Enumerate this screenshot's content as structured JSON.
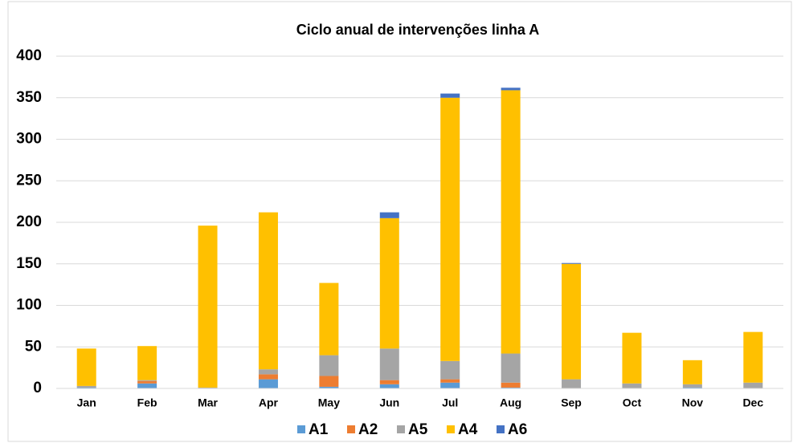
{
  "chart_data": {
    "type": "stacked_bar",
    "title": "Ciclo anual de intervenções linha A",
    "categories": [
      "Jan",
      "Feb",
      "Mar",
      "Apr",
      "May",
      "Jun",
      "Jul",
      "Aug",
      "Sep",
      "Oct",
      "Nov",
      "Dec"
    ],
    "series": [
      {
        "name": "A1",
        "color": "#5b9bd5",
        "values": [
          1,
          6,
          0,
          11,
          2,
          5,
          7,
          1,
          0,
          0,
          1,
          0
        ]
      },
      {
        "name": "A2",
        "color": "#ed7d31",
        "values": [
          0,
          3,
          0,
          6,
          13,
          5,
          4,
          6,
          0,
          0,
          0,
          0
        ]
      },
      {
        "name": "A5",
        "color": "#a5a5a5",
        "values": [
          2,
          1,
          1,
          6,
          25,
          38,
          22,
          35,
          11,
          6,
          4,
          7
        ]
      },
      {
        "name": "A4",
        "color": "#ffc000",
        "values": [
          45,
          41,
          195,
          189,
          87,
          157,
          317,
          317,
          139,
          61,
          29,
          61
        ]
      },
      {
        "name": "A6",
        "color": "#4472c4",
        "values": [
          0,
          0,
          0,
          0,
          0,
          7,
          5,
          3,
          1,
          0,
          0,
          0
        ]
      }
    ],
    "ylim": [
      0,
      400
    ],
    "yticks": [
      0,
      50,
      100,
      150,
      200,
      250,
      300,
      350,
      400
    ],
    "grid": true,
    "legend": "bottom"
  }
}
